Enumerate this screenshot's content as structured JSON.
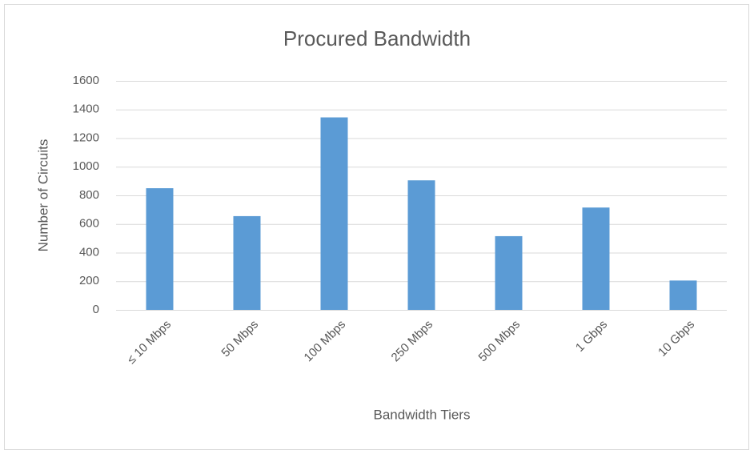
{
  "chart_data": {
    "type": "bar",
    "title": "Procured Bandwidth",
    "x_label": "Bandwidth Tiers",
    "y_label": "Number of Circuits",
    "categories": [
      "≤ 10 Mbps",
      "50 Mbps",
      "100 Mbps",
      "250 Mbps",
      "500 Mbps",
      "1 Gbps",
      "10 Gbps"
    ],
    "values": [
      850,
      655,
      1345,
      905,
      515,
      715,
      205
    ],
    "color": "#5b9bd5",
    "ylim": [
      0,
      1600
    ],
    "yticks": [
      0,
      200,
      400,
      600,
      800,
      1000,
      1200,
      1400,
      1600
    ],
    "grid": true
  }
}
